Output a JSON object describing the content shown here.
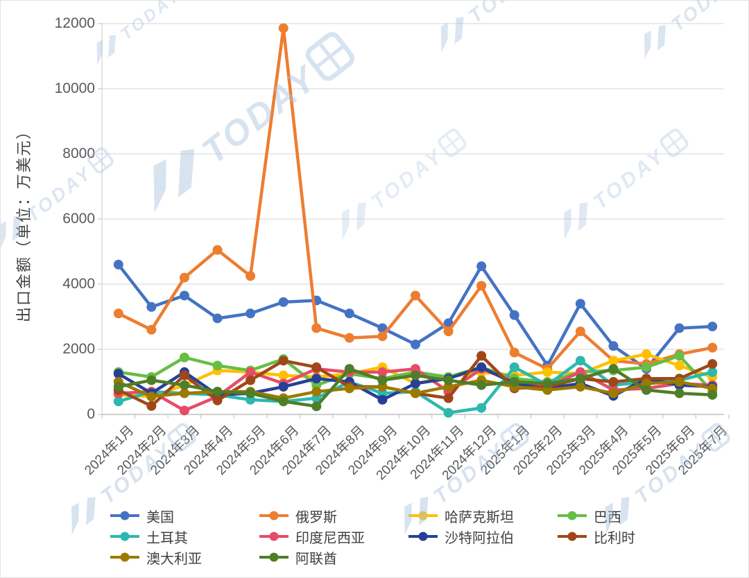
{
  "watermark": {
    "text": "TODAY"
  },
  "chart_data": {
    "type": "line",
    "title": "",
    "xlabel": "",
    "ylabel": "出口金额（单位：万美元）",
    "ylim": [
      0,
      12000
    ],
    "yticks": [
      0,
      2000,
      4000,
      6000,
      8000,
      10000,
      12000
    ],
    "grid": true,
    "legend_position": "bottom",
    "marker": "circle",
    "categories": [
      "2024年1月",
      "2024年2月",
      "2024年3月",
      "2024年4月",
      "2024年5月",
      "2024年6月",
      "2024年7月",
      "2024年8月",
      "2024年9月",
      "2024年10月",
      "2024年11月",
      "2024年12月",
      "2025年1月",
      "2025年2月",
      "2025年3月",
      "2025年4月",
      "2025年5月",
      "2025年6月",
      "2025年7月"
    ],
    "series": [
      {
        "name": "美国",
        "color": "#4472C4",
        "values": [
          4600,
          3300,
          3650,
          2950,
          3100,
          3450,
          3500,
          3100,
          2650,
          2150,
          2800,
          4550,
          3050,
          1500,
          3400,
          2100,
          1400,
          2650,
          2700
        ]
      },
      {
        "name": "俄罗斯",
        "color": "#ED7D31",
        "values": [
          3100,
          2600,
          4200,
          5050,
          4250,
          11860,
          2650,
          2350,
          2400,
          3650,
          2550,
          3950,
          1900,
          1400,
          2550,
          1650,
          1550,
          1850,
          2050
        ]
      },
      {
        "name": "哈萨克斯坦",
        "color": "#FFC000",
        "values": [
          600,
          550,
          900,
          1350,
          1300,
          1200,
          1150,
          1250,
          1450,
          950,
          1150,
          1300,
          1200,
          1300,
          1250,
          1650,
          1850,
          1500,
          1150
        ]
      },
      {
        "name": "巴西",
        "color": "#66BE45",
        "values": [
          1300,
          1150,
          1750,
          1500,
          1350,
          1700,
          900,
          1250,
          1100,
          1300,
          1150,
          1450,
          1100,
          1000,
          1300,
          1350,
          1450,
          1800,
          700
        ]
      },
      {
        "name": "土耳其",
        "color": "#2DB8AD",
        "values": [
          400,
          700,
          650,
          600,
          450,
          400,
          500,
          1000,
          650,
          700,
          50,
          200,
          1450,
          900,
          1650,
          900,
          1000,
          1050,
          1300
        ]
      },
      {
        "name": "印度尼西亚",
        "color": "#E64C66",
        "values": [
          650,
          700,
          120,
          550,
          1300,
          950,
          1400,
          1300,
          1300,
          1400,
          700,
          1400,
          1000,
          850,
          1300,
          750,
          800,
          950,
          900
        ]
      },
      {
        "name": "沙特阿拉伯",
        "color": "#264097",
        "values": [
          1250,
          650,
          1300,
          600,
          650,
          850,
          1100,
          1000,
          450,
          950,
          1100,
          1450,
          950,
          800,
          950,
          570,
          1100,
          900,
          850
        ]
      },
      {
        "name": "比利时",
        "color": "#A0471A",
        "values": [
          750,
          260,
          1200,
          430,
          1050,
          1650,
          1450,
          850,
          850,
          650,
          500,
          1800,
          800,
          850,
          1100,
          1000,
          1100,
          1100,
          1550
        ]
      },
      {
        "name": "澳大利亚",
        "color": "#9C7A00",
        "values": [
          1000,
          550,
          650,
          700,
          700,
          500,
          700,
          800,
          850,
          650,
          850,
          1050,
          850,
          750,
          850,
          650,
          950,
          1000,
          800
        ]
      },
      {
        "name": "阿联酋",
        "color": "#4E7E28",
        "values": [
          850,
          1050,
          900,
          700,
          650,
          400,
          250,
          1400,
          1050,
          1200,
          1050,
          900,
          1000,
          950,
          1100,
          1400,
          750,
          650,
          600
        ]
      }
    ]
  }
}
